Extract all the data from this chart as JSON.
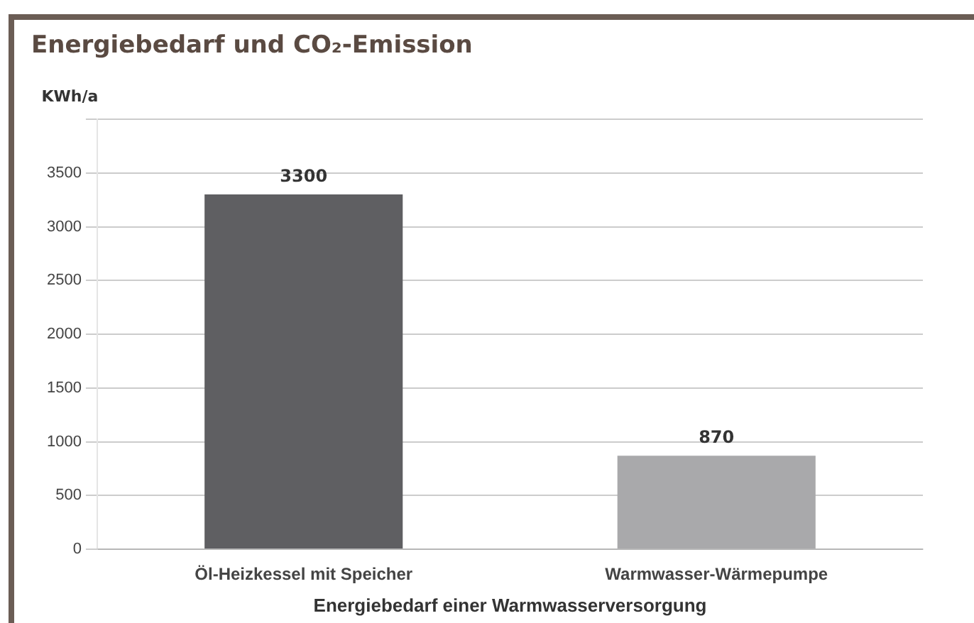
{
  "chart_data": {
    "type": "bar",
    "title": "Energiebedarf und CO₂-Emission",
    "categories": [
      "Öl-Heizkessel mit Speicher",
      "Warmwasser-Wärmepumpe"
    ],
    "values": [
      3300,
      870
    ],
    "colors": [
      "#5f5f62",
      "#a9a9ab"
    ],
    "ylabel": "KWh/a",
    "xlabel": "Energiebedarf einer Warmwasserversorgung",
    "ylim": [
      0,
      4000
    ],
    "yticks": [
      0,
      500,
      1000,
      1500,
      2000,
      2500,
      3000,
      3500,
      {
        "value": 4000,
        "label": null
      }
    ],
    "grid": "y",
    "data_labels": true
  }
}
